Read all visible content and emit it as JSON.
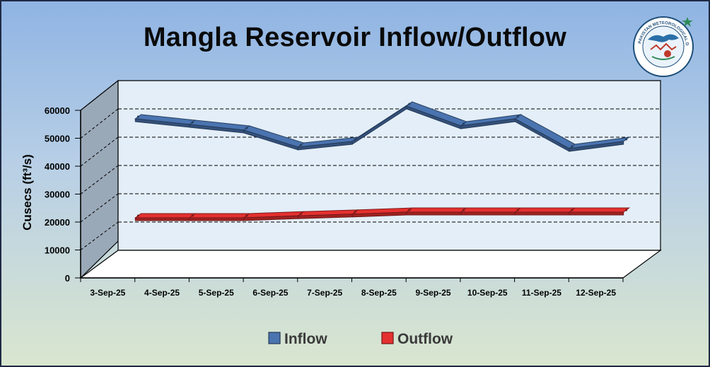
{
  "chart_data": {
    "type": "line",
    "title": "Mangla Reservoir Inflow/Outflow",
    "ylabel": "Cusecs (ft³/s)",
    "xlabel": "",
    "ylim": [
      0,
      60000
    ],
    "y_ticks": [
      0,
      10000,
      20000,
      30000,
      40000,
      50000,
      60000
    ],
    "categories": [
      "3-Sep-25",
      "4-Sep-25",
      "5-Sep-25",
      "6-Sep-25",
      "7-Sep-25",
      "8-Sep-25",
      "9-Sep-25",
      "10-Sep-25",
      "11-Sep-25",
      "12-Sep-25"
    ],
    "series": [
      {
        "name": "Inflow",
        "color": "#4a74b0",
        "values": [
          48500,
          46500,
          44500,
          38500,
          40500,
          53000,
          46000,
          48500,
          38000,
          40500
        ]
      },
      {
        "name": "Outflow",
        "color": "#e53030",
        "values": [
          13500,
          13500,
          13500,
          14200,
          14800,
          15500,
          15500,
          15500,
          15500,
          15500
        ]
      }
    ],
    "grid": "horizontal dashed",
    "legend": "bottom-center",
    "style": "3d-ribbon"
  },
  "logo": {
    "text_top": "PAKISTAN METEOROLOGICAL DEPARTMENT"
  }
}
